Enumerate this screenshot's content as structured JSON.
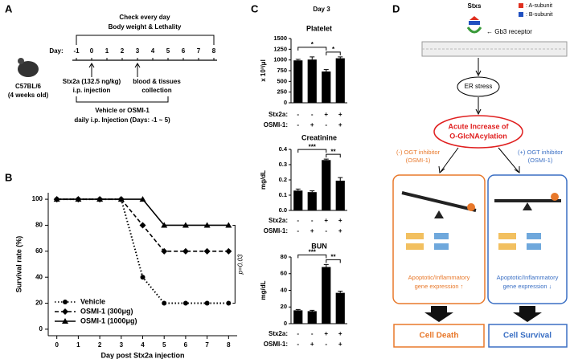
{
  "panel_letters": [
    "A",
    "B",
    "C",
    "D"
  ],
  "panel_a": {
    "header": [
      "Check every day",
      "Body weight & Lethality"
    ],
    "day_label": "Day:",
    "days": [
      "-1",
      "0",
      "1",
      "2",
      "3",
      "4",
      "5",
      "6",
      "7",
      "8"
    ],
    "mouse": [
      "C57BL/6",
      "(4 weeks old)"
    ],
    "injection": [
      "Stx2a (132.5 ng/kg)",
      "i.p. injection"
    ],
    "collection": [
      "blood & tissues",
      "collection"
    ],
    "treatment": [
      "Vehicle or OSMI-1",
      "daily i.p. Injection (Days: -1 ~ 5)"
    ]
  },
  "panel_c": {
    "title": "Day 3"
  },
  "panel_d": {
    "toxin": "Stxs",
    "legend": [
      ": A-subunit",
      ": B-subunit"
    ],
    "receptor": "← Gb3 receptor",
    "er": "ER stress",
    "increase": [
      "Acute Increase of",
      "O-GlcNAcylation"
    ],
    "left": {
      "inhibitor": [
        "(-) OGT inhibitor",
        "(OSMI-1)"
      ],
      "expression": [
        "Apoptotic/Inflammatory",
        "gene expression ↑"
      ],
      "outcome": "Cell Death"
    },
    "right": {
      "inhibitor": [
        "(+) OGT inhibitor",
        "(OSMI-1)"
      ],
      "expression": [
        "Apoptotic/Inflammatory",
        "gene expression ↓"
      ],
      "outcome": "Cell Survival"
    }
  },
  "chart_data": [
    {
      "type": "line",
      "xlabel": "Day post Stx2a injection",
      "ylabel": "Survival rate (%)",
      "x": [
        0,
        1,
        2,
        3,
        4,
        5,
        6,
        7,
        8
      ],
      "xlim": [
        -0.4,
        8.4
      ],
      "xticks": [
        0,
        1,
        2,
        3,
        4,
        5,
        6,
        7,
        8
      ],
      "ylim": [
        -5,
        105
      ],
      "yticks": [
        0,
        20,
        40,
        60,
        80,
        100
      ],
      "legend": "lower left",
      "annotation": "p=0.03",
      "series": [
        {
          "name": "Vehicle",
          "color": "#000000",
          "dash": "dotted",
          "marker": "circle",
          "values": [
            100,
            100,
            100,
            100,
            40,
            20,
            20,
            20,
            20
          ]
        },
        {
          "name": "OSMI-1 (300μg)",
          "color": "#000000",
          "dash": "dashed",
          "marker": "diamond",
          "values": [
            100,
            100,
            100,
            100,
            80,
            60,
            60,
            60,
            60
          ]
        },
        {
          "name": "OSMI-1 (1000μg)",
          "color": "#000000",
          "dash": "solid",
          "marker": "triangle",
          "values": [
            100,
            100,
            100,
            100,
            100,
            80,
            80,
            80,
            80
          ]
        }
      ]
    },
    {
      "type": "bar",
      "title": "Platelet",
      "ylabel": "x 10³/μl",
      "color": "#000000",
      "values": [
        990,
        1010,
        730,
        1040
      ],
      "errors": [
        25,
        60,
        45,
        30
      ],
      "ylim": [
        0,
        1500
      ],
      "yticks": [
        0,
        250,
        500,
        750,
        1000,
        1250,
        1500
      ],
      "conditions": [
        {
          "name": "Stx2a:",
          "values": [
            "-",
            "-",
            "+",
            "+"
          ]
        },
        {
          "name": "OSMI-1:",
          "values": [
            "-",
            "+",
            "-",
            "+"
          ]
        }
      ],
      "comparisons": [
        {
          "pair": [
            0,
            2
          ],
          "label": "*"
        },
        {
          "pair": [
            2,
            3
          ],
          "label": "*"
        }
      ]
    },
    {
      "type": "bar",
      "title": "Creatinine",
      "ylabel": "mg/dL",
      "color": "#000000",
      "values": [
        0.13,
        0.12,
        0.33,
        0.195
      ],
      "errors": [
        0.01,
        0.008,
        0.006,
        0.02
      ],
      "ylim": [
        0,
        0.4
      ],
      "yticks": [
        {
          "value": 0,
          "label": "0.0"
        },
        0.1,
        0.2,
        0.3,
        0.4
      ],
      "conditions": [
        {
          "name": "Stx2a:",
          "values": [
            "-",
            "-",
            "+",
            "+"
          ]
        },
        {
          "name": "OSMI-1:",
          "values": [
            "-",
            "+",
            "-",
            "+"
          ]
        }
      ],
      "comparisons": [
        {
          "pair": [
            0,
            2
          ],
          "label": "***"
        },
        {
          "pair": [
            2,
            3
          ],
          "label": "**"
        }
      ]
    },
    {
      "type": "bar",
      "title": "BUN",
      "ylabel": "mg/dL",
      "color": "#000000",
      "values": [
        16,
        15,
        68,
        37
      ],
      "errors": [
        1,
        1,
        3,
        2
      ],
      "ylim": [
        0,
        80
      ],
      "yticks": [
        0,
        20,
        40,
        60,
        80
      ],
      "conditions": [
        {
          "name": "Stx2a:",
          "values": [
            "-",
            "-",
            "+",
            "+"
          ]
        },
        {
          "name": "OSMI-1:",
          "values": [
            "-",
            "+",
            "-",
            "+"
          ]
        }
      ],
      "comparisons": [
        {
          "pair": [
            0,
            2
          ],
          "label": "***"
        },
        {
          "pair": [
            2,
            3
          ],
          "label": "**"
        }
      ]
    }
  ]
}
